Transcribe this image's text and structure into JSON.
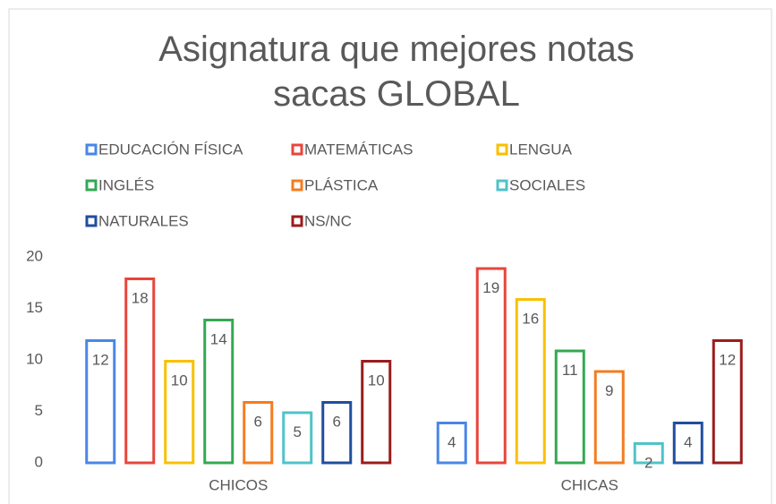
{
  "chart_data": {
    "type": "bar",
    "title": "Asignatura que mejores notas sacas  GLOBAL",
    "categories": [
      "CHICOS",
      "CHICAS"
    ],
    "series": [
      {
        "name": "EDUCACIÓN FÍSICA",
        "color": "#4a86e8",
        "values": [
          12,
          4
        ]
      },
      {
        "name": "MATEMÁTICAS",
        "color": "#e8453c",
        "values": [
          18,
          19
        ]
      },
      {
        "name": "LENGUA",
        "color": "#f9c000",
        "values": [
          10,
          16
        ]
      },
      {
        "name": "INGLÉS",
        "color": "#34a853",
        "values": [
          14,
          11
        ]
      },
      {
        "name": "PLÁSTICA",
        "color": "#f47c20",
        "values": [
          6,
          9
        ]
      },
      {
        "name": "SOCIALES",
        "color": "#4fc3c9",
        "values": [
          5,
          2
        ]
      },
      {
        "name": "NATURALES",
        "color": "#1f4e9e",
        "values": [
          6,
          4
        ]
      },
      {
        "name": "NS/NC",
        "color": "#9b1c1c",
        "values": [
          10,
          12
        ]
      }
    ],
    "ylim": [
      0,
      20
    ],
    "yticks": [
      0,
      5,
      10,
      15,
      20
    ],
    "grid": false,
    "legend": "top"
  }
}
